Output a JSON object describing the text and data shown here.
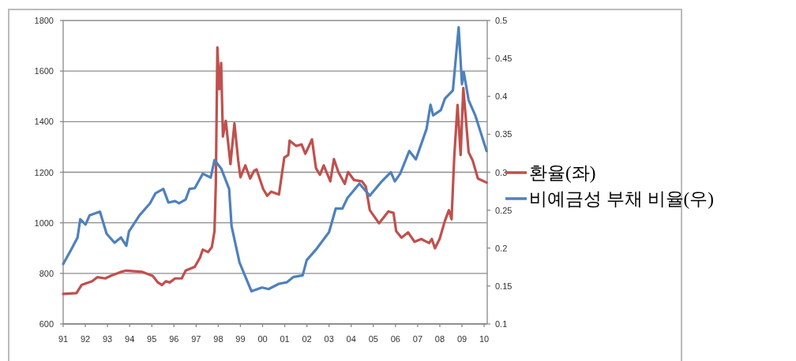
{
  "chart_data": {
    "type": "line",
    "grid": "y",
    "legend": "right",
    "xlim": [
      1991,
      2010.14
    ],
    "xticks": [
      {
        "value": 1991,
        "label": "91"
      },
      {
        "value": 1992,
        "label": "92"
      },
      {
        "value": 1993,
        "label": "93"
      },
      {
        "value": 1994,
        "label": "94"
      },
      {
        "value": 1995,
        "label": "95"
      },
      {
        "value": 1996,
        "label": "96"
      },
      {
        "value": 1997,
        "label": "97"
      },
      {
        "value": 1998,
        "label": "98"
      },
      {
        "value": 1999,
        "label": "99"
      },
      {
        "value": 2000,
        "label": "00"
      },
      {
        "value": 2001,
        "label": "01"
      },
      {
        "value": 2002,
        "label": "02"
      },
      {
        "value": 2003,
        "label": "03"
      },
      {
        "value": 2004,
        "label": "04"
      },
      {
        "value": 2005,
        "label": "05"
      },
      {
        "value": 2006,
        "label": "06"
      },
      {
        "value": 2007,
        "label": "07"
      },
      {
        "value": 2008,
        "label": "08"
      },
      {
        "value": 2009,
        "label": "09"
      },
      {
        "value": 2010,
        "label": "10"
      }
    ],
    "ylim": [
      600,
      1800
    ],
    "yticks": [
      600,
      800,
      1000,
      1200,
      1400,
      1600,
      1800
    ],
    "y2lim": [
      0.1,
      0.5
    ],
    "y2ticks": [
      0.1,
      0.15,
      0.2,
      0.25,
      0.3,
      0.35,
      0.4,
      0.45,
      0.5
    ],
    "series": [
      {
        "name": "환율(좌)",
        "color": "#c0504d",
        "x": [
          1991.0,
          1991.6,
          1991.83,
          1992.31,
          1992.54,
          1992.9,
          1993.14,
          1993.61,
          1993.85,
          1994.57,
          1995.04,
          1995.28,
          1995.46,
          1995.63,
          1995.81,
          1996.05,
          1996.35,
          1996.53,
          1996.94,
          1997.18,
          1997.3,
          1997.54,
          1997.71,
          1997.83,
          1997.89,
          1997.96,
          1998.05,
          1998.13,
          1998.21,
          1998.34,
          1998.43,
          1998.55,
          1998.73,
          1998.9,
          1999.0,
          1999.22,
          1999.44,
          1999.62,
          1999.73,
          2000.03,
          2000.21,
          2000.39,
          2000.74,
          2000.98,
          2001.16,
          2001.22,
          2001.52,
          2001.76,
          2001.93,
          2002.23,
          2002.41,
          2002.59,
          2002.76,
          2003.06,
          2003.22,
          2003.42,
          2003.71,
          2003.86,
          2004.13,
          2004.49,
          2004.66,
          2004.84,
          2005.26,
          2005.68,
          2005.91,
          2006.03,
          2006.27,
          2006.57,
          2006.86,
          2007.16,
          2007.52,
          2007.64,
          2007.78,
          2007.99,
          2008.23,
          2008.41,
          2008.53,
          2008.65,
          2008.8,
          2008.94,
          2009.06,
          2009.3,
          2009.48,
          2009.72,
          2010.11
        ],
        "values": [
          719,
          722,
          754,
          769,
          785,
          780,
          790,
          806,
          811,
          806,
          790,
          764,
          754,
          769,
          764,
          780,
          780,
          811,
          826,
          863,
          894,
          884,
          904,
          967,
          1154,
          1694,
          1528,
          1632,
          1341,
          1403,
          1330,
          1232,
          1393,
          1247,
          1180,
          1227,
          1175,
          1206,
          1211,
          1133,
          1107,
          1123,
          1112,
          1258,
          1268,
          1325,
          1304,
          1310,
          1273,
          1330,
          1216,
          1190,
          1227,
          1164,
          1252,
          1201,
          1154,
          1201,
          1169,
          1164,
          1143,
          1050,
          998,
          1045,
          1039,
          967,
          941,
          962,
          925,
          936,
          920,
          936,
          899,
          936,
          1008,
          1050,
          1014,
          1258,
          1466,
          1268,
          1533,
          1279,
          1247,
          1175,
          1159
        ]
      },
      {
        "name": "비예금성 부채 비율(우)",
        "color": "#4f81bd",
        "axis": "y2",
        "x": [
          1991.0,
          1991.36,
          1991.65,
          1991.77,
          1992.01,
          1992.19,
          1992.66,
          1992.96,
          1993.32,
          1993.61,
          1993.85,
          1993.97,
          1994.44,
          1994.92,
          1995.16,
          1995.52,
          1995.75,
          1996.05,
          1996.23,
          1996.53,
          1996.7,
          1996.94,
          1997.3,
          1997.66,
          1997.83,
          1998.13,
          1998.49,
          1998.6,
          1998.96,
          1999.5,
          1999.97,
          2000.27,
          2000.74,
          2001.1,
          2001.4,
          2001.81,
          2001.99,
          2002.41,
          2003.0,
          2003.3,
          2003.6,
          2003.83,
          2004.37,
          2004.84,
          2005.38,
          2005.79,
          2005.97,
          2006.21,
          2006.62,
          2006.92,
          2007.4,
          2007.58,
          2007.7,
          2008.05,
          2008.23,
          2008.59,
          2008.85,
          2009.0,
          2009.08,
          2009.3,
          2009.6,
          2010.11
        ],
        "values": [
          0.179,
          0.198,
          0.214,
          0.238,
          0.231,
          0.243,
          0.248,
          0.219,
          0.207,
          0.214,
          0.203,
          0.222,
          0.243,
          0.259,
          0.272,
          0.278,
          0.26,
          0.262,
          0.259,
          0.264,
          0.278,
          0.279,
          0.298,
          0.293,
          0.316,
          0.305,
          0.278,
          0.229,
          0.181,
          0.143,
          0.148,
          0.146,
          0.153,
          0.155,
          0.162,
          0.164,
          0.184,
          0.198,
          0.221,
          0.252,
          0.252,
          0.266,
          0.285,
          0.269,
          0.288,
          0.3,
          0.288,
          0.298,
          0.328,
          0.317,
          0.357,
          0.389,
          0.375,
          0.382,
          0.397,
          0.408,
          0.491,
          0.416,
          0.432,
          0.395,
          0.375,
          0.328
        ]
      }
    ]
  }
}
